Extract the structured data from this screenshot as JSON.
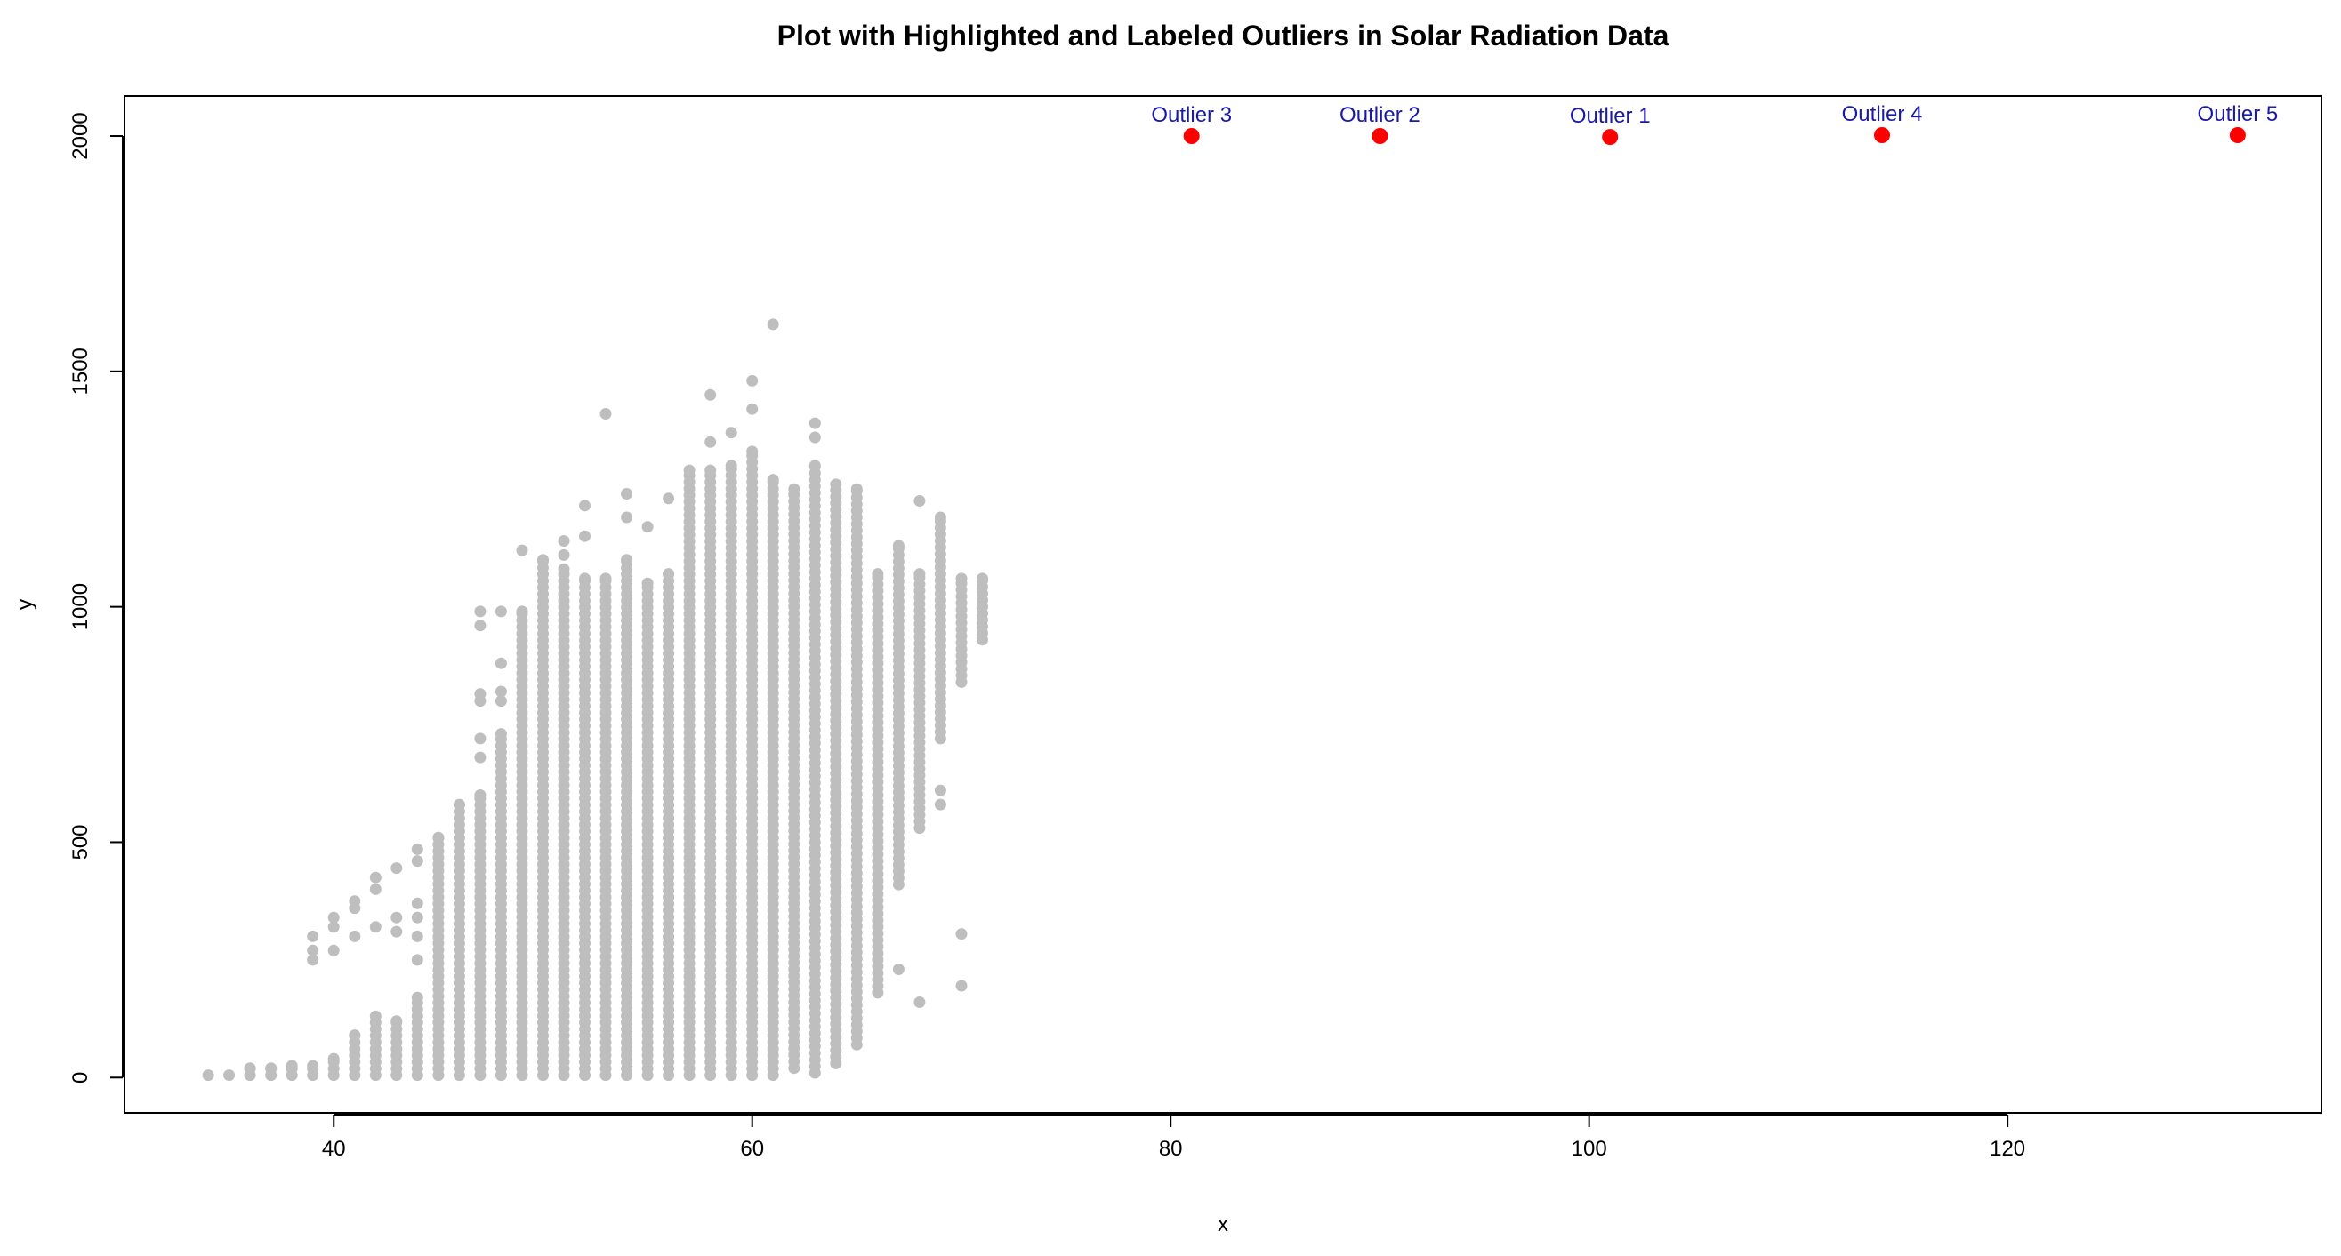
{
  "chart_data": {
    "type": "scatter",
    "title": "Plot with Highlighted and Labeled Outliers in Solar Radiation Data",
    "xlabel": "x",
    "ylabel": "y",
    "xlim": [
      30,
      135
    ],
    "ylim": [
      -75,
      2085
    ],
    "x_ticks": [
      40,
      60,
      80,
      100,
      120
    ],
    "y_ticks": [
      0,
      500,
      1000,
      1500,
      2000
    ],
    "grid": false,
    "legend": "none",
    "colors": {
      "points": "#bebebe",
      "outliers": "#ff0000",
      "outlier_labels": "#1a1aa6",
      "frame": "#000000"
    },
    "series": [
      {
        "role": "data",
        "columns": [
          {
            "x": 34,
            "ymin": 5,
            "ymax": 5
          },
          {
            "x": 35,
            "ymin": 5,
            "ymax": 5
          },
          {
            "x": 36,
            "ymin": 5,
            "ymax": 20
          },
          {
            "x": 37,
            "ymin": 5,
            "ymax": 20
          },
          {
            "x": 38,
            "ymin": 5,
            "ymax": 25
          },
          {
            "x": 39,
            "ymin": 5,
            "ymax": 25,
            "extra": [
              250,
              270,
              300
            ]
          },
          {
            "x": 40,
            "ymin": 5,
            "ymax": 40,
            "extra": [
              270,
              320,
              340
            ]
          },
          {
            "x": 41,
            "ymin": 5,
            "ymax": 90,
            "extra": [
              300,
              360,
              375
            ]
          },
          {
            "x": 42,
            "ymin": 5,
            "ymax": 130,
            "extra": [
              320,
              400,
              425
            ]
          },
          {
            "x": 43,
            "ymin": 5,
            "ymax": 120,
            "extra": [
              310,
              340,
              445
            ]
          },
          {
            "x": 44,
            "ymin": 5,
            "ymax": 170,
            "extra": [
              250,
              300,
              340,
              370,
              460,
              485
            ]
          },
          {
            "x": 45,
            "ymin": 5,
            "ymax": 510
          },
          {
            "x": 46,
            "ymin": 5,
            "ymax": 580
          },
          {
            "x": 47,
            "ymin": 5,
            "ymax": 600,
            "extra": [
              680,
              720,
              800,
              815,
              960,
              990
            ]
          },
          {
            "x": 48,
            "ymin": 5,
            "ymax": 730,
            "extra": [
              800,
              820,
              880,
              990
            ]
          },
          {
            "x": 49,
            "ymin": 5,
            "ymax": 990,
            "extra": [
              1120
            ]
          },
          {
            "x": 50,
            "ymin": 5,
            "ymax": 1100
          },
          {
            "x": 51,
            "ymin": 5,
            "ymax": 1080,
            "extra": [
              1110,
              1140
            ]
          },
          {
            "x": 52,
            "ymin": 5,
            "ymax": 1060,
            "extra": [
              1150,
              1215
            ]
          },
          {
            "x": 53,
            "ymin": 5,
            "ymax": 1060,
            "extra": [
              1410
            ]
          },
          {
            "x": 54,
            "ymin": 5,
            "ymax": 1100,
            "extra": [
              1190,
              1240
            ]
          },
          {
            "x": 55,
            "ymin": 5,
            "ymax": 1050,
            "extra": [
              1170
            ]
          },
          {
            "x": 56,
            "ymin": 5,
            "ymax": 1070,
            "extra": [
              1230
            ]
          },
          {
            "x": 57,
            "ymin": 5,
            "ymax": 1290
          },
          {
            "x": 58,
            "ymin": 5,
            "ymax": 1290,
            "extra": [
              1350,
              1450
            ]
          },
          {
            "x": 59,
            "ymin": 5,
            "ymax": 1300,
            "extra": [
              1370
            ]
          },
          {
            "x": 60,
            "ymin": 5,
            "ymax": 1330,
            "extra": [
              1420,
              1480
            ]
          },
          {
            "x": 61,
            "ymin": 5,
            "ymax": 1270,
            "extra": [
              1600
            ]
          },
          {
            "x": 62,
            "ymin": 20,
            "ymax": 1250
          },
          {
            "x": 63,
            "ymin": 10,
            "ymax": 1300,
            "extra": [
              1360,
              1390
            ]
          },
          {
            "x": 64,
            "ymin": 30,
            "ymax": 1260
          },
          {
            "x": 65,
            "ymin": 70,
            "ymax": 1250
          },
          {
            "x": 66,
            "ymin": 180,
            "ymax": 1070
          },
          {
            "x": 67,
            "ymin": 410,
            "ymax": 1130,
            "extra": [
              230
            ]
          },
          {
            "x": 68,
            "ymin": 530,
            "ymax": 1070,
            "extra": [
              160,
              1225
            ]
          },
          {
            "x": 69,
            "ymin": 720,
            "ymax": 1190,
            "extra": [
              580,
              610
            ]
          },
          {
            "x": 70,
            "ymin": 840,
            "ymax": 1060,
            "extra": [
              195,
              305
            ]
          },
          {
            "x": 71,
            "ymin": 930,
            "ymax": 1060
          }
        ]
      },
      {
        "role": "outliers",
        "points": [
          {
            "x": 81,
            "y": 2000,
            "label": "Outlier 3"
          },
          {
            "x": 90,
            "y": 2000,
            "label": "Outlier 2"
          },
          {
            "x": 101,
            "y": 1998,
            "label": "Outlier 1"
          },
          {
            "x": 114,
            "y": 2002,
            "label": "Outlier 4"
          },
          {
            "x": 131,
            "y": 2002,
            "label": "Outlier 5"
          }
        ]
      }
    ]
  }
}
